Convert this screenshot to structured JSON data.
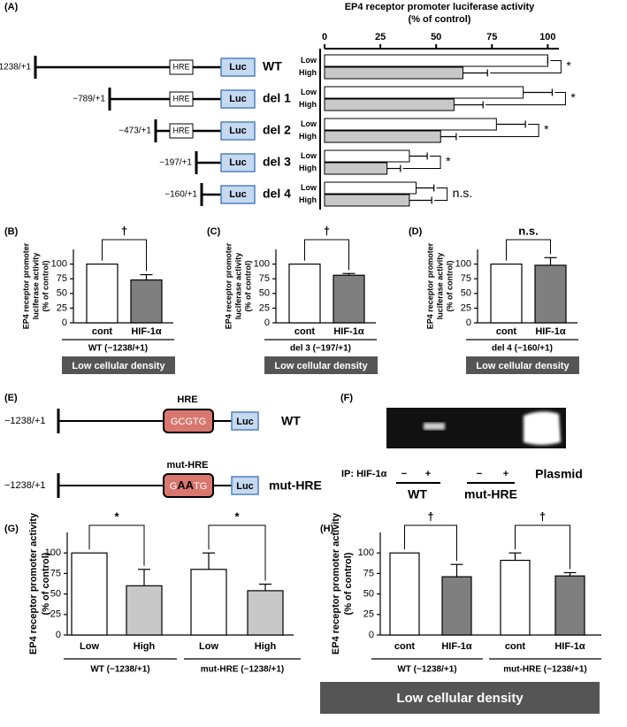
{
  "chart_data": [
    {
      "type": "hbar",
      "panel": "(A)",
      "title": [
        "EP4 receptor promoter luciferase activity",
        "(% of control)"
      ],
      "categories": [
        "WT",
        "del 1",
        "del 2",
        "del 3",
        "del 4"
      ],
      "constructs": [
        "−1238/+1",
        "−789/+1",
        "−473/+1",
        "−197/+1",
        "−160/+1"
      ],
      "element_labels": {
        "hre": "HRE",
        "luc": "Luc"
      },
      "series": [
        {
          "name": "Low",
          "color": "#ffffff",
          "values": [
            100,
            89,
            77,
            38,
            41
          ],
          "error": [
            0,
            13,
            13,
            8,
            8
          ]
        },
        {
          "name": "High",
          "color": "#c8c8c8",
          "values": [
            62,
            58,
            52,
            28,
            38
          ],
          "error": [
            11,
            13,
            7,
            6,
            10
          ]
        }
      ],
      "significance": [
        "*",
        "*",
        "*",
        "*",
        "n.s."
      ],
      "xlim": [
        0,
        105
      ],
      "xticks": [
        0,
        25,
        50,
        75,
        100
      ]
    },
    {
      "type": "bar",
      "panel": "(B)",
      "ylabel": [
        "EP4 receptor promoter",
        "luciferase activity",
        "(% of control)"
      ],
      "categories": [
        "cont",
        "HIF-1α"
      ],
      "values": [
        100,
        73
      ],
      "error": [
        null,
        9
      ],
      "colors": [
        "#ffffff",
        "#7f7f7f"
      ],
      "groups": [
        {
          "label": "WT (−1238/+1)",
          "significance": "†"
        }
      ],
      "footer": "Low cellular density",
      "ylim": [
        0,
        125
      ],
      "yticks": [
        0,
        25,
        50,
        75,
        100
      ]
    },
    {
      "type": "bar",
      "panel": "(C)",
      "ylabel": [
        "EP4 receptor promoter",
        "luciferase activity",
        "(% of control)"
      ],
      "categories": [
        "cont",
        "HIF-1α"
      ],
      "values": [
        100,
        81
      ],
      "error": [
        null,
        3
      ],
      "colors": [
        "#ffffff",
        "#7f7f7f"
      ],
      "groups": [
        {
          "label": "del 3 (−197/+1)",
          "significance": "†"
        }
      ],
      "footer": "Low cellular density",
      "ylim": [
        0,
        125
      ],
      "yticks": [
        0,
        25,
        50,
        75,
        100
      ]
    },
    {
      "type": "bar",
      "panel": "(D)",
      "ylabel": [
        "EP4 receptor promoter",
        "luciferase activity",
        "(% of control)"
      ],
      "categories": [
        "cont",
        "HIF-1α"
      ],
      "values": [
        100,
        98
      ],
      "error": [
        null,
        13
      ],
      "colors": [
        "#ffffff",
        "#7f7f7f"
      ],
      "groups": [
        {
          "label": "del 4 (−160/+1)",
          "significance": "n.s."
        }
      ],
      "footer": "Low cellular density",
      "ylim": [
        0,
        125
      ],
      "yticks": [
        0,
        25,
        50,
        75,
        100
      ]
    },
    {
      "type": "bar",
      "panel": "(G)",
      "ylabel": [
        "EP4 receptor promoter activity",
        "(% of control)"
      ],
      "categories": [
        "Low",
        "High",
        "Low",
        "High"
      ],
      "values": [
        100,
        60,
        80,
        54
      ],
      "error": [
        null,
        20,
        20,
        8
      ],
      "colors": [
        "#ffffff",
        "#c8c8c8",
        "#ffffff",
        "#c8c8c8"
      ],
      "groups": [
        {
          "label": "WT (−1238/+1)",
          "significance": "*"
        },
        {
          "label": "mut-HRE (−1238/+1)",
          "significance": "*"
        }
      ],
      "ylim": [
        0,
        125
      ],
      "yticks": [
        0,
        25,
        50,
        75,
        100
      ]
    },
    {
      "type": "bar",
      "panel": "(H)",
      "ylabel": [
        "EP4 receptor promoter activity",
        "(% of control)"
      ],
      "categories": [
        "cont",
        "HIF-1α",
        "cont",
        "HIF-1α"
      ],
      "values": [
        100,
        71,
        91,
        72
      ],
      "error": [
        null,
        15,
        9,
        4
      ],
      "colors": [
        "#ffffff",
        "#7f7f7f",
        "#ffffff",
        "#7f7f7f"
      ],
      "groups": [
        {
          "label": "WT (−1238/+1)",
          "significance": "†"
        },
        {
          "label": "mut-HRE (−1238/+1)",
          "significance": "†"
        }
      ],
      "footer": "Low cellular density",
      "ylim": [
        0,
        125
      ],
      "yticks": [
        0,
        25,
        50,
        75,
        100
      ]
    }
  ],
  "panel_e": {
    "label": "(E)",
    "rows": [
      {
        "position": "−1238/+1",
        "element": "HRE",
        "sequence": [
          "GCGTG"
        ],
        "reporter": "Luc",
        "name": "WT"
      },
      {
        "position": "−1238/+1",
        "element": "mut-HRE",
        "sequence": [
          "G",
          "AA",
          "TG"
        ],
        "reporter": "Luc",
        "name": "mut-HRE"
      }
    ]
  },
  "panel_f": {
    "label": "(F)",
    "ip_label": "IP: HIF-1α",
    "lanes": [
      "−",
      "+",
      "−",
      "+"
    ],
    "groups": [
      "WT",
      "mut-HRE"
    ],
    "plasmid": "Plasmid"
  }
}
